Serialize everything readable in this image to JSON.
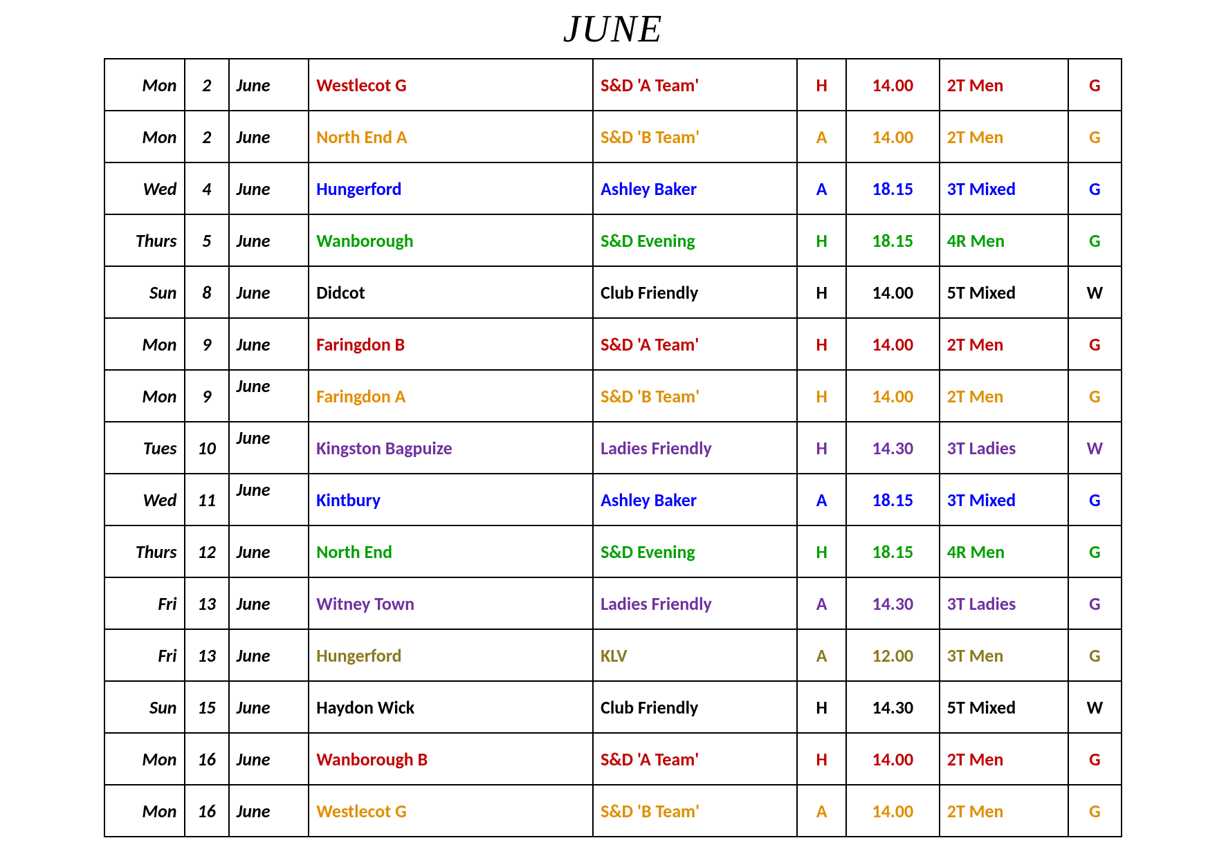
{
  "title": "JUNE",
  "colors": {
    "red": "#c00000",
    "orange": "#e08e00",
    "blue": "#0000ff",
    "green": "#00a000",
    "black": "#000000",
    "purple": "#7030a0",
    "olive": "#8a7a1f"
  },
  "rows": [
    {
      "day": "Mon",
      "num": "2",
      "month": "June",
      "monthTop": false,
      "opponent": "Westlecot G",
      "competition": "S&D 'A Team'",
      "ha": "H",
      "time": "14.00",
      "format": "2T Men",
      "dress": "G",
      "color": "red"
    },
    {
      "day": "Mon",
      "num": "2",
      "month": "June",
      "monthTop": false,
      "opponent": "North End A",
      "competition": "S&D 'B Team'",
      "ha": "A",
      "time": "14.00",
      "format": "2T Men",
      "dress": "G",
      "color": "orange"
    },
    {
      "day": "Wed",
      "num": "4",
      "month": "June",
      "monthTop": false,
      "opponent": "Hungerford",
      "competition": "Ashley Baker",
      "ha": "A",
      "time": "18.15",
      "format": "3T Mixed",
      "dress": "G",
      "color": "blue"
    },
    {
      "day": "Thurs",
      "num": "5",
      "month": "June",
      "monthTop": false,
      "opponent": "Wanborough",
      "competition": "S&D Evening",
      "ha": "H",
      "time": "18.15",
      "format": "4R Men",
      "dress": "G",
      "color": "green"
    },
    {
      "day": "Sun",
      "num": "8",
      "month": "June",
      "monthTop": false,
      "opponent": "Didcot",
      "competition": "Club Friendly",
      "ha": "H",
      "time": "14.00",
      "format": "5T Mixed",
      "dress": "W",
      "color": "black"
    },
    {
      "day": "Mon",
      "num": "9",
      "month": "June",
      "monthTop": false,
      "opponent": "Faringdon B",
      "competition": "S&D 'A Team'",
      "ha": "H",
      "time": "14.00",
      "format": "2T Men",
      "dress": "G",
      "color": "red"
    },
    {
      "day": "Mon",
      "num": "9",
      "month": "June",
      "monthTop": true,
      "opponent": "Faringdon A",
      "competition": "S&D 'B Team'",
      "ha": "H",
      "time": "14.00",
      "format": "2T Men",
      "dress": "G",
      "color": "orange"
    },
    {
      "day": "Tues",
      "num": "10",
      "month": "June",
      "monthTop": true,
      "opponent": "Kingston Bagpuize",
      "competition": "Ladies Friendly",
      "ha": "H",
      "time": "14.30",
      "format": "3T Ladies",
      "dress": "W",
      "color": "purple"
    },
    {
      "day": "Wed",
      "num": "11",
      "month": "June",
      "monthTop": true,
      "opponent": "Kintbury",
      "competition": "Ashley Baker",
      "ha": "A",
      "time": "18.15",
      "format": "3T Mixed",
      "dress": "G",
      "color": "blue"
    },
    {
      "day": "Thurs",
      "num": "12",
      "month": "June",
      "monthTop": false,
      "opponent": "North End",
      "competition": "S&D Evening",
      "ha": "H",
      "time": "18.15",
      "format": "4R Men",
      "dress": "G",
      "color": "green"
    },
    {
      "day": "Fri",
      "num": "13",
      "month": "June",
      "monthTop": false,
      "opponent": "Witney Town",
      "competition": "Ladies Friendly",
      "ha": "A",
      "time": "14.30",
      "format": "3T Ladies",
      "dress": "G",
      "color": "purple"
    },
    {
      "day": "Fri",
      "num": "13",
      "month": "June",
      "monthTop": false,
      "opponent": "Hungerford",
      "competition": "KLV",
      "ha": "A",
      "time": "12.00",
      "format": "3T Men",
      "dress": "G",
      "color": "olive"
    },
    {
      "day": "Sun",
      "num": "15",
      "month": "June",
      "monthTop": false,
      "opponent": "Haydon Wick",
      "competition": "Club Friendly",
      "ha": "H",
      "time": "14.30",
      "format": "5T Mixed",
      "dress": "W",
      "color": "black"
    },
    {
      "day": "Mon",
      "num": "16",
      "month": "June",
      "monthTop": false,
      "opponent": "Wanborough B",
      "competition": "S&D 'A Team'",
      "ha": "H",
      "time": "14.00",
      "format": "2T Men",
      "dress": "G",
      "color": "red"
    },
    {
      "day": "Mon",
      "num": "16",
      "month": "June",
      "monthTop": false,
      "opponent": "Westlecot G",
      "competition": "S&D 'B Team'",
      "ha": "A",
      "time": "14.00",
      "format": "2T Men",
      "dress": "G",
      "color": "orange"
    }
  ]
}
